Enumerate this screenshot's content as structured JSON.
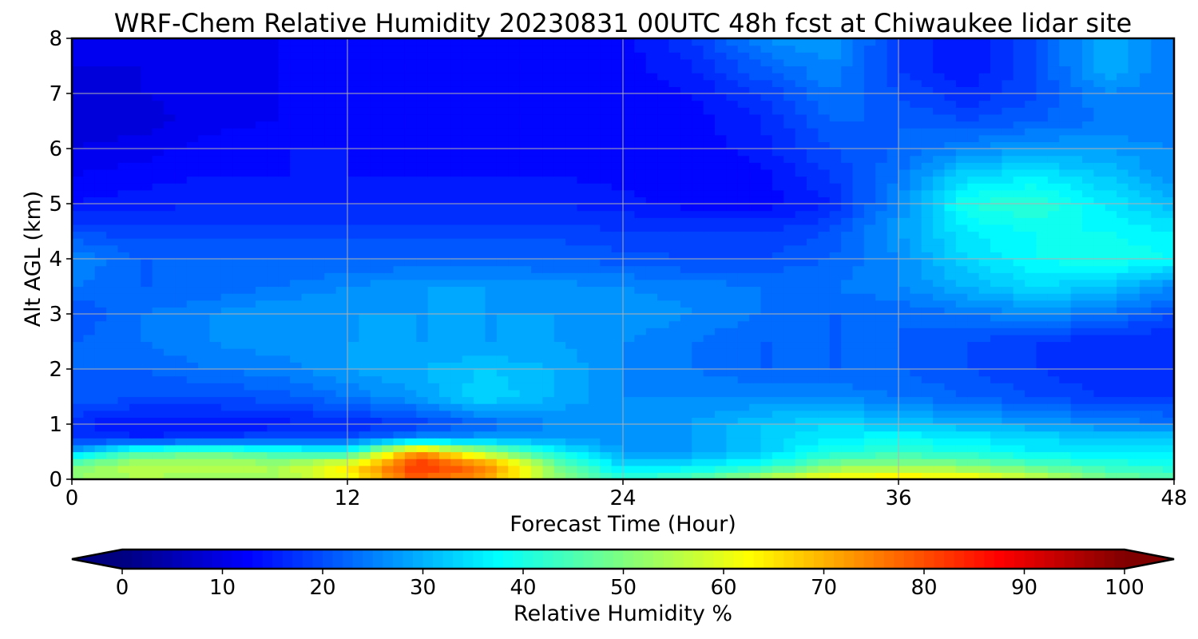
{
  "chart_data": {
    "type": "heatmap",
    "title": "WRF-Chem Relative Humidity 20230831 00UTC 48h fcst at Chiwaukee lidar site",
    "xlabel": "Forecast Time (Hour)",
    "ylabel": "Alt AGL (km)",
    "xlim": [
      0,
      48
    ],
    "ylim": [
      0,
      8
    ],
    "xticks": [
      0,
      12,
      24,
      36,
      48
    ],
    "yticks": [
      0,
      1,
      2,
      3,
      4,
      5,
      6,
      7,
      8
    ],
    "grid": true,
    "colormap": "jet",
    "colorbar": {
      "label": "Relative Humidity %",
      "range": [
        0,
        100
      ],
      "ticks": [
        0,
        10,
        20,
        30,
        40,
        50,
        60,
        70,
        80,
        90,
        100
      ],
      "orientation": "horizontal",
      "extend": "both"
    },
    "x": [
      0,
      3,
      6,
      9,
      12,
      15,
      18,
      21,
      24,
      27,
      30,
      33,
      36,
      39,
      42,
      45,
      48
    ],
    "y": [
      0,
      0.25,
      0.5,
      0.75,
      1,
      1.5,
      2,
      2.5,
      3,
      3.5,
      4,
      4.5,
      5,
      5.5,
      6,
      6.5,
      7,
      7.5,
      8
    ],
    "z": [
      [
        52,
        54,
        52,
        53,
        62,
        78,
        72,
        52,
        42,
        46,
        56,
        64,
        66,
        64,
        58,
        50,
        46
      ],
      [
        50,
        56,
        56,
        54,
        64,
        84,
        76,
        50,
        34,
        36,
        40,
        50,
        52,
        50,
        46,
        42,
        40
      ],
      [
        30,
        44,
        47,
        42,
        40,
        74,
        54,
        38,
        28,
        28,
        32,
        40,
        42,
        40,
        36,
        36,
        35
      ],
      [
        18,
        16,
        18,
        20,
        20,
        26,
        28,
        28,
        26,
        28,
        32,
        36,
        38,
        36,
        34,
        32,
        32
      ],
      [
        16,
        14,
        14,
        15,
        16,
        18,
        22,
        26,
        26,
        28,
        32,
        34,
        32,
        30,
        28,
        26,
        24
      ],
      [
        22,
        20,
        20,
        21,
        24,
        28,
        34,
        30,
        26,
        26,
        26,
        26,
        24,
        22,
        20,
        18,
        18
      ],
      [
        22,
        22,
        24,
        25,
        28,
        30,
        32,
        30,
        26,
        24,
        22,
        22,
        22,
        20,
        18,
        16,
        16
      ],
      [
        22,
        24,
        26,
        27,
        28,
        28,
        28,
        28,
        26,
        24,
        22,
        22,
        22,
        20,
        18,
        16,
        16
      ],
      [
        20,
        24,
        26,
        28,
        28,
        28,
        28,
        28,
        28,
        26,
        24,
        22,
        22,
        24,
        26,
        24,
        20
      ],
      [
        24,
        22,
        22,
        24,
        26,
        28,
        28,
        27,
        26,
        25,
        24,
        24,
        26,
        30,
        34,
        32,
        26
      ],
      [
        26,
        22,
        22,
        22,
        22,
        22,
        22,
        22,
        21,
        20,
        20,
        22,
        26,
        34,
        38,
        40,
        38
      ],
      [
        20,
        19,
        19,
        19,
        19,
        19,
        19,
        19,
        18,
        18,
        18,
        20,
        28,
        36,
        38,
        38,
        36
      ],
      [
        14,
        15,
        16,
        16,
        16,
        16,
        16,
        16,
        15,
        13,
        13,
        16,
        26,
        40,
        42,
        36,
        30
      ],
      [
        12,
        13,
        14,
        14,
        14,
        14,
        14,
        14,
        13,
        12,
        13,
        18,
        24,
        34,
        36,
        32,
        26
      ],
      [
        10,
        11,
        13,
        14,
        14,
        13,
        13,
        13,
        13,
        13,
        15,
        20,
        22,
        26,
        28,
        28,
        26
      ],
      [
        8,
        9,
        11,
        12,
        13,
        13,
        12,
        12,
        12,
        13,
        16,
        22,
        22,
        20,
        22,
        24,
        24
      ],
      [
        9,
        10,
        11,
        12,
        13,
        13,
        12,
        12,
        12,
        14,
        18,
        24,
        20,
        16,
        20,
        26,
        24
      ],
      [
        10,
        10,
        11,
        12,
        13,
        12,
        12,
        12,
        13,
        16,
        22,
        26,
        18,
        14,
        20,
        30,
        24
      ],
      [
        10,
        10,
        11,
        12,
        13,
        12,
        12,
        12,
        13,
        18,
        26,
        28,
        18,
        14,
        20,
        30,
        24
      ]
    ]
  }
}
